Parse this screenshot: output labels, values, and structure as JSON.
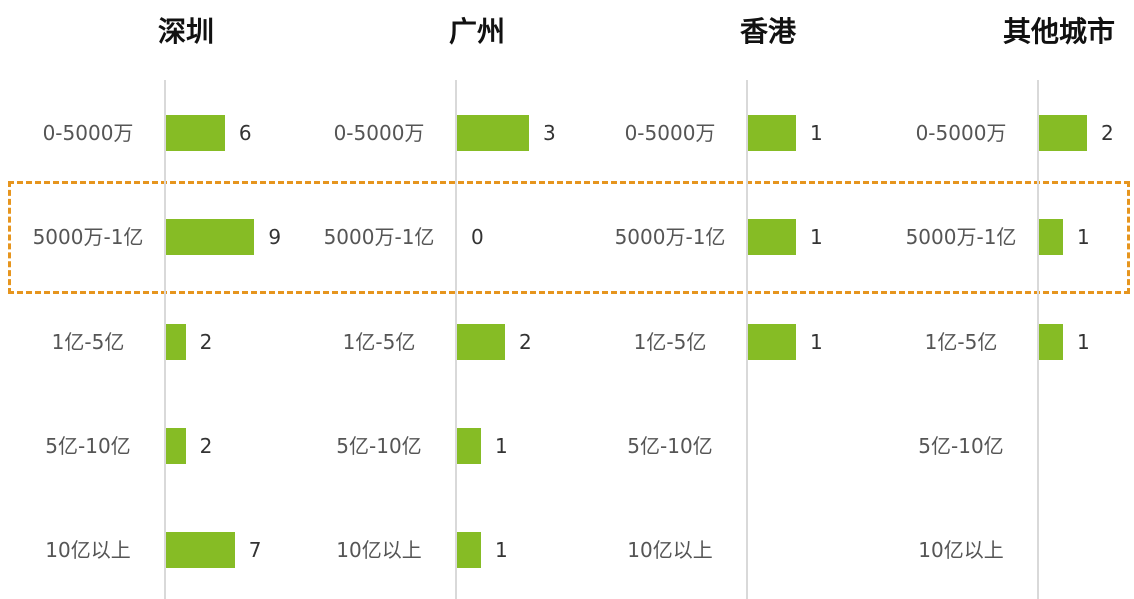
{
  "chart_data": [
    {
      "type": "bar",
      "orientation": "horizontal",
      "title": "深圳",
      "categories": [
        "0-5000万",
        "5000万-1亿",
        "1亿-5亿",
        "5亿-10亿",
        "10亿以上"
      ],
      "values": [
        6,
        9,
        2,
        2,
        7
      ],
      "color": "#86bc25",
      "xlim": [
        0,
        11
      ]
    },
    {
      "type": "bar",
      "orientation": "horizontal",
      "title": "广州",
      "categories": [
        "0-5000万",
        "5000万-1亿",
        "1亿-5亿",
        "5亿-10亿",
        "10亿以上"
      ],
      "values": [
        3,
        0,
        2,
        1,
        1
      ],
      "color": "#86bc25",
      "xlim": [
        0,
        4.5
      ]
    },
    {
      "type": "bar",
      "orientation": "horizontal",
      "title": "香港",
      "categories": [
        "0-5000万",
        "5000万-1亿",
        "1亿-5亿",
        "5亿-10亿",
        "10亿以上"
      ],
      "values": [
        1,
        1,
        1,
        null,
        null
      ],
      "color": "#86bc25",
      "xlim": [
        0,
        2.25
      ]
    },
    {
      "type": "bar",
      "orientation": "horizontal",
      "title": "其他城市",
      "categories": [
        "0-5000万",
        "5000万-1亿",
        "1亿-5亿",
        "5亿-10亿",
        "10亿以上"
      ],
      "values": [
        2,
        1,
        1,
        null,
        null
      ],
      "color": "#86bc25",
      "xlim": [
        0,
        4.5
      ]
    }
  ]
}
